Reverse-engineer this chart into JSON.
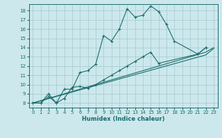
{
  "xlabel": "Humidex (Indice chaleur)",
  "background_color": "#cce8ec",
  "grid_color": "#aacdd4",
  "line_color": "#1a6b6b",
  "xlim": [
    -0.5,
    23.5
  ],
  "ylim": [
    7.5,
    18.7
  ],
  "xticks": [
    0,
    1,
    2,
    3,
    4,
    5,
    6,
    7,
    8,
    9,
    10,
    11,
    12,
    13,
    14,
    15,
    16,
    17,
    18,
    19,
    20,
    21,
    22,
    23
  ],
  "yticks": [
    8,
    9,
    10,
    11,
    12,
    13,
    14,
    15,
    16,
    17,
    18
  ],
  "series1_x": [
    0,
    1,
    2,
    3,
    4,
    5,
    6,
    7,
    8,
    9,
    10,
    11,
    12,
    13,
    14,
    15,
    16,
    17,
    18,
    21,
    22
  ],
  "series1_y": [
    8,
    8,
    9.0,
    8,
    9.5,
    9.5,
    11.3,
    11.5,
    12.2,
    15.3,
    14.7,
    16.0,
    18.2,
    17.3,
    17.5,
    18.5,
    17.9,
    16.5,
    14.7,
    13.3,
    14.0
  ],
  "series2_x": [
    0,
    1,
    2,
    3,
    4,
    5,
    6,
    7,
    8,
    9,
    10,
    11,
    12,
    13,
    14,
    15,
    16,
    21,
    22
  ],
  "series2_y": [
    8,
    8,
    8.7,
    8,
    8.5,
    9.7,
    9.8,
    9.6,
    10.0,
    10.5,
    11.0,
    11.5,
    12.0,
    12.5,
    13.0,
    13.5,
    12.3,
    13.3,
    14.0
  ],
  "series3_x": [
    0,
    22,
    23
  ],
  "series3_y": [
    8,
    13.2,
    13.9
  ],
  "series4_x": [
    0,
    22,
    23
  ],
  "series4_y": [
    8,
    13.5,
    14.0
  ]
}
